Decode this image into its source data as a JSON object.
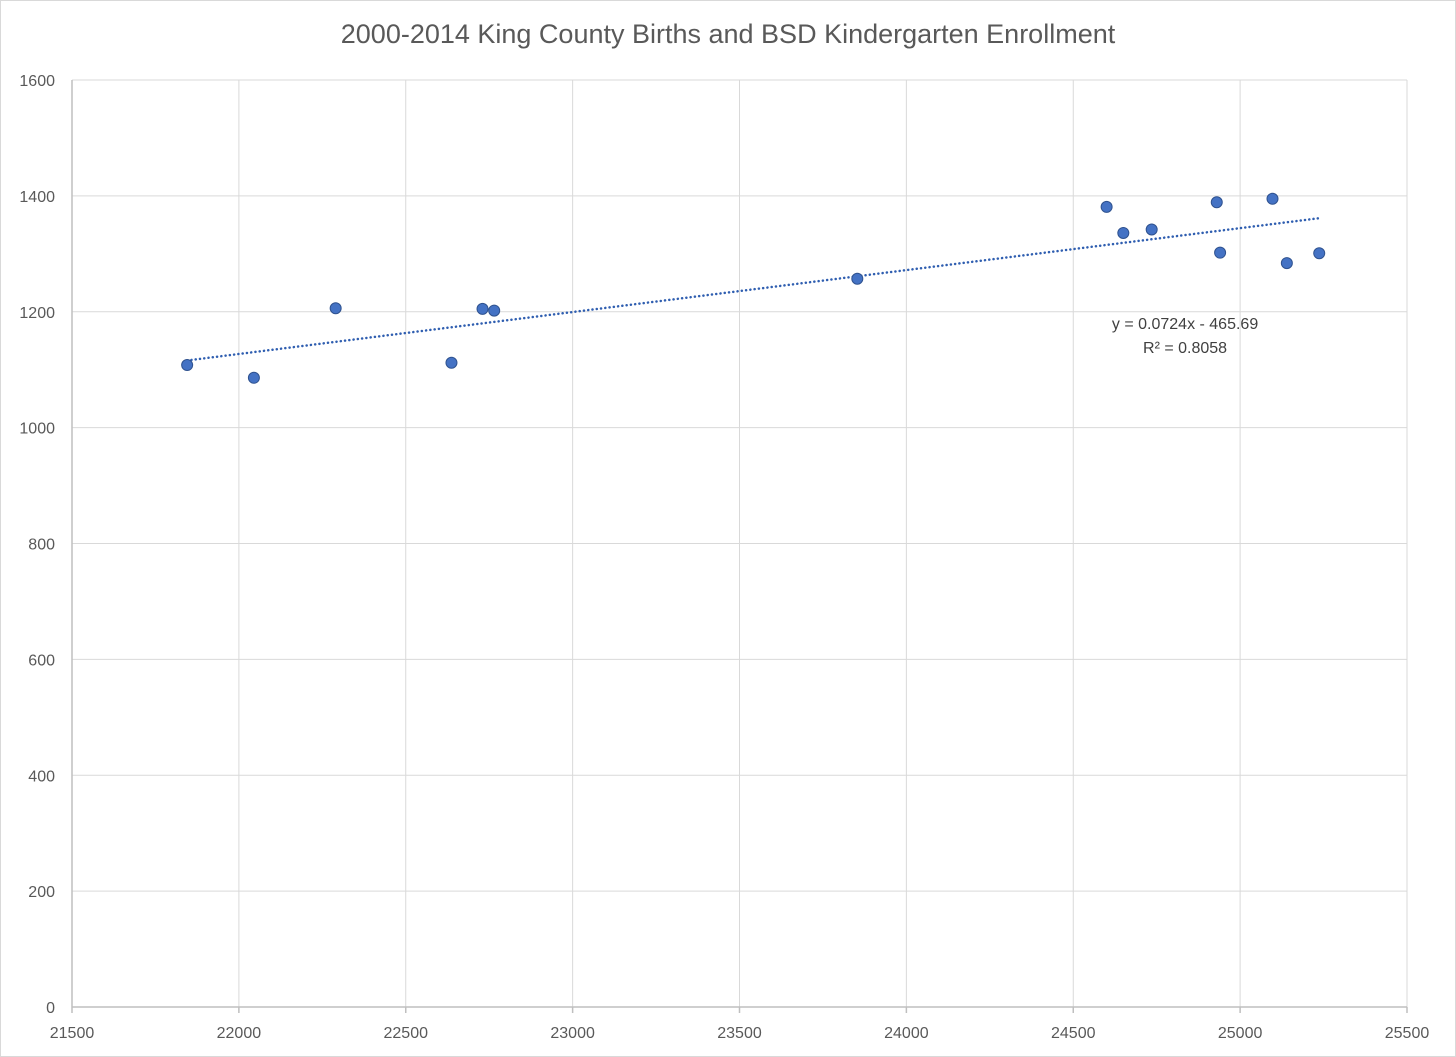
{
  "chart_data": {
    "type": "scatter",
    "title": "2000-2014 King County Births and BSD Kindergarten Enrollment",
    "xlabel": "",
    "ylabel": "",
    "xlim": [
      21500,
      25500
    ],
    "ylim": [
      0,
      1600
    ],
    "x_ticks": [
      "21500",
      "22000",
      "22500",
      "23000",
      "23500",
      "24000",
      "24500",
      "25000",
      "25500"
    ],
    "y_ticks": [
      "0",
      "200",
      "400",
      "600",
      "800",
      "1000",
      "1200",
      "1400",
      "1600"
    ],
    "grid": true,
    "legend": "none",
    "points": [
      {
        "x": 21845,
        "y": 1108
      },
      {
        "x": 22045,
        "y": 1086
      },
      {
        "x": 22290,
        "y": 1206
      },
      {
        "x": 22637,
        "y": 1112
      },
      {
        "x": 22730,
        "y": 1205
      },
      {
        "x": 22765,
        "y": 1202
      },
      {
        "x": 23853,
        "y": 1257
      },
      {
        "x": 24600,
        "y": 1381
      },
      {
        "x": 24650,
        "y": 1336
      },
      {
        "x": 24735,
        "y": 1342
      },
      {
        "x": 24930,
        "y": 1389
      },
      {
        "x": 24940,
        "y": 1302
      },
      {
        "x": 25097,
        "y": 1395
      },
      {
        "x": 25140,
        "y": 1284
      },
      {
        "x": 25237,
        "y": 1301
      }
    ],
    "trendline": {
      "slope": 0.0724,
      "intercept": -465.69,
      "x_range": [
        21845,
        25237
      ],
      "equation_label": "y = 0.0724x - 465.69",
      "r2_label": "R² = 0.8058",
      "label_anchor": {
        "x": 24835,
        "y": 1170
      }
    },
    "colors": {
      "point_fill": "#4472c4",
      "point_stroke": "#2f528f",
      "trendline": "#2f5eb0",
      "grid": "#d9d9d9",
      "axis": "#bfbfbf",
      "text": "#595959"
    }
  }
}
